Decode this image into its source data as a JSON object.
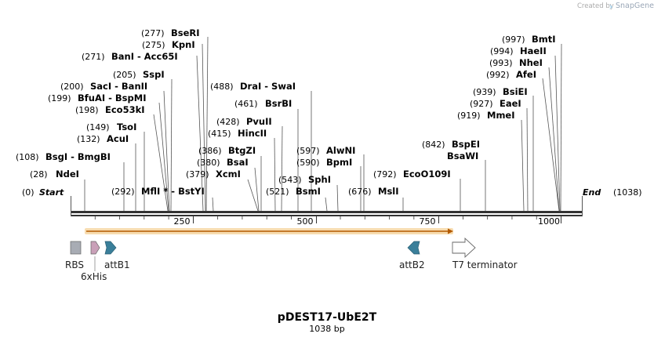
{
  "brand": {
    "created_by": "Created by",
    "name": "SnapGene"
  },
  "map": {
    "title": "pDEST17-UbE2T",
    "length_label": "1038 bp",
    "start_label": "Start",
    "start_pos": "(0)",
    "end_label": "End",
    "end_pos": "(1038)",
    "length": 1038,
    "ticks": [
      250,
      500,
      750,
      1000
    ]
  },
  "sites": [
    {
      "pos": "(28)",
      "name": "NdeI"
    },
    {
      "pos": "(108)",
      "name": "BsgI",
      "sep": " - ",
      "name2": "BmgBI"
    },
    {
      "pos": "(132)",
      "name": "AcuI"
    },
    {
      "pos": "(149)",
      "name": "TsoI"
    },
    {
      "pos": "(198)",
      "name": "Eco53kI"
    },
    {
      "pos": "(199)",
      "name": "BfuAI",
      "sep": " - ",
      "name2": "BspMI"
    },
    {
      "pos": "(200)",
      "name": "SacI",
      "sep": " - ",
      "name2": "BanII"
    },
    {
      "pos": "(205)",
      "name": "SspI"
    },
    {
      "pos": "(271)",
      "name": "BanI",
      "sep": " - ",
      "name2": "Acc65I"
    },
    {
      "pos": "(275)",
      "name": "KpnI"
    },
    {
      "pos": "(277)",
      "name": "BseRI"
    },
    {
      "pos": "(292)",
      "name": "MflI",
      "sep": " * - ",
      "name2": "BstYI"
    },
    {
      "pos": "(379)",
      "name": "XcmI"
    },
    {
      "pos": "(380)",
      "name": "BsaI"
    },
    {
      "pos": "(386)",
      "name": "BtgZI"
    },
    {
      "pos": "(415)",
      "name": "HincII"
    },
    {
      "pos": "(428)",
      "name": "PvuII"
    },
    {
      "pos": "(461)",
      "name": "BsrBI"
    },
    {
      "pos": "(488)",
      "name": "DraI",
      "sep": " - ",
      "name2": "SwaI"
    },
    {
      "pos": "(521)",
      "name": "BsmI"
    },
    {
      "pos": "(543)",
      "name": "SphI"
    },
    {
      "pos": "(590)",
      "name": "BpmI"
    },
    {
      "pos": "(597)",
      "name": "AlwNI"
    },
    {
      "pos": "(676)",
      "name": "MslI"
    },
    {
      "pos": "(792)",
      "name": "EcoO109I"
    },
    {
      "pos": "",
      "name": "BsaWI"
    },
    {
      "pos": "(842)",
      "name": "BspEI"
    },
    {
      "pos": "(919)",
      "name": "MmeI"
    },
    {
      "pos": "(927)",
      "name": "EaeI"
    },
    {
      "pos": "(939)",
      "name": "BsiEI"
    },
    {
      "pos": "(992)",
      "name": "AfeI"
    },
    {
      "pos": "(993)",
      "name": "NheI"
    },
    {
      "pos": "(994)",
      "name": "HaeII"
    },
    {
      "pos": "(997)",
      "name": "BmtI"
    }
  ],
  "features": [
    {
      "name": "RBS",
      "type": "rbs",
      "color": "#a8acb4"
    },
    {
      "name": "6xHis",
      "type": "his",
      "color": "#c9a0b8"
    },
    {
      "name": "attB1",
      "type": "attb",
      "color": "#3a7f9a"
    },
    {
      "name": "attB2",
      "type": "attb",
      "color": "#3a7f9a"
    },
    {
      "name": "T7 terminator",
      "type": "terminator",
      "color": "#ffffff"
    }
  ],
  "orf": {
    "color": "#f0c070",
    "arrow_color": "#b35a00"
  }
}
